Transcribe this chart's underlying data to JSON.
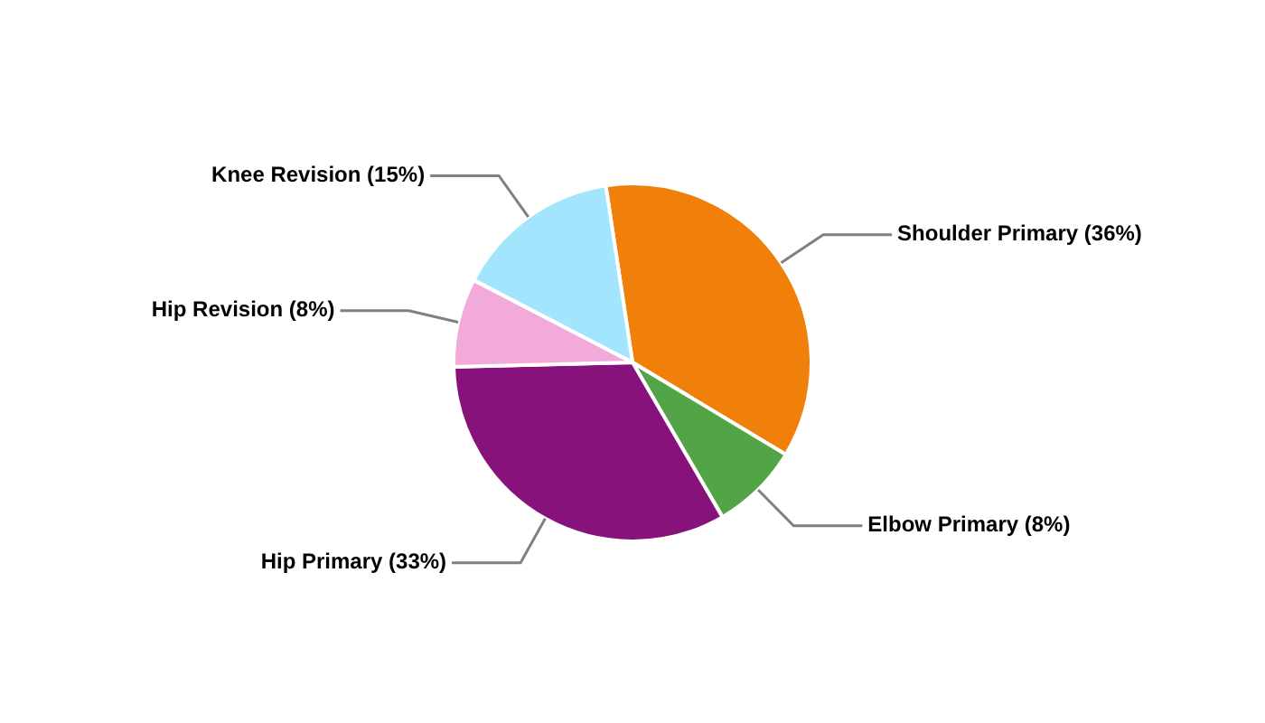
{
  "chart_data": {
    "type": "pie",
    "categories": [
      "Shoulder Primary",
      "Elbow Primary",
      "Hip Primary",
      "Hip Revision",
      "Knee Revision"
    ],
    "values": [
      36,
      8,
      33,
      8,
      15
    ],
    "value_labels": [
      "(36%)",
      "(8%)",
      "(33%)",
      "(8%)",
      "(15%)"
    ],
    "colors": [
      "#f08009",
      "#52a447",
      "#88127c",
      "#f2aadb",
      "#a3e5fc"
    ],
    "legend": false
  }
}
